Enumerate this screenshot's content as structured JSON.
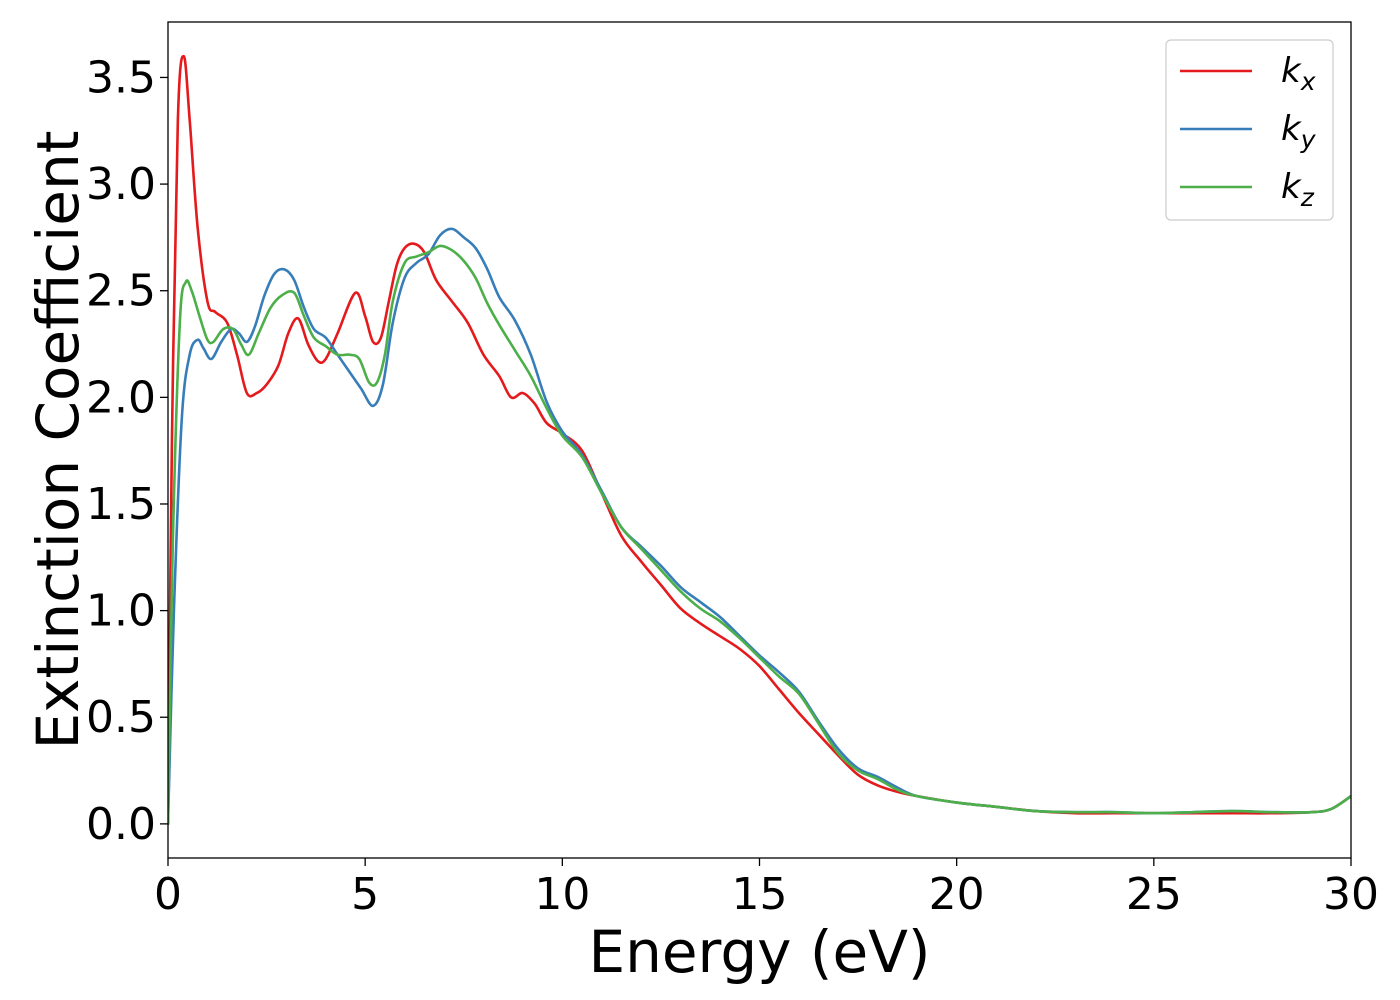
{
  "chart_data": {
    "type": "line",
    "title": "",
    "xlabel": "Energy (eV)",
    "ylabel": "Extinction Coefficient",
    "xlim": [
      0,
      30
    ],
    "ylim": [
      -0.16,
      3.76
    ],
    "xticks": [
      0,
      5,
      10,
      15,
      20,
      25,
      30
    ],
    "xtick_labels": [
      "0",
      "5",
      "10",
      "15",
      "20",
      "25",
      "30"
    ],
    "yticks": [
      0.0,
      0.5,
      1.0,
      1.5,
      2.0,
      2.5,
      3.0,
      3.5
    ],
    "ytick_labels": [
      "0.0",
      "0.5",
      "1.0",
      "1.5",
      "2.0",
      "2.5",
      "3.0",
      "3.5"
    ],
    "grid": false,
    "legend_position": "top-right",
    "series": [
      {
        "name": "k_x",
        "label_main": "k",
        "label_sub": "x",
        "color": "#e41a1c",
        "x": [
          0,
          0.1,
          0.25,
          0.4,
          0.55,
          0.75,
          1.0,
          1.2,
          1.5,
          1.75,
          2.0,
          2.25,
          2.5,
          2.8,
          3.05,
          3.3,
          3.55,
          3.8,
          4.0,
          4.3,
          4.75,
          5.0,
          5.2,
          5.4,
          5.6,
          5.8,
          6.0,
          6.25,
          6.5,
          6.8,
          7.2,
          7.6,
          8.0,
          8.4,
          8.7,
          9.0,
          9.3,
          9.6,
          10.0,
          10.5,
          11.0,
          11.5,
          12.0,
          12.5,
          13.0,
          13.5,
          14.0,
          14.5,
          15.0,
          15.5,
          16.0,
          16.5,
          17.0,
          17.5,
          18.0,
          18.5,
          19.0,
          20.0,
          21.0,
          22.0,
          23.0,
          24.0,
          25.0,
          26.0,
          27.0,
          28.0,
          29.0,
          29.5,
          30.0
        ],
        "y": [
          0.0,
          1.8,
          3.3,
          3.6,
          3.3,
          2.8,
          2.45,
          2.4,
          2.35,
          2.2,
          2.02,
          2.02,
          2.06,
          2.15,
          2.3,
          2.37,
          2.25,
          2.17,
          2.18,
          2.3,
          2.49,
          2.38,
          2.26,
          2.28,
          2.45,
          2.62,
          2.7,
          2.72,
          2.68,
          2.55,
          2.45,
          2.35,
          2.2,
          2.1,
          2.0,
          2.02,
          1.97,
          1.88,
          1.83,
          1.75,
          1.55,
          1.35,
          1.23,
          1.12,
          1.01,
          0.94,
          0.88,
          0.82,
          0.74,
          0.63,
          0.52,
          0.42,
          0.32,
          0.23,
          0.18,
          0.15,
          0.13,
          0.1,
          0.08,
          0.06,
          0.05,
          0.05,
          0.05,
          0.05,
          0.05,
          0.05,
          0.055,
          0.07,
          0.13
        ]
      },
      {
        "name": "k_y",
        "label_main": "k",
        "label_sub": "y",
        "color": "#377eb8",
        "x": [
          0,
          0.15,
          0.35,
          0.55,
          0.75,
          0.9,
          1.1,
          1.35,
          1.6,
          1.8,
          2.0,
          2.2,
          2.45,
          2.7,
          2.95,
          3.2,
          3.45,
          3.7,
          4.0,
          4.3,
          4.6,
          4.9,
          5.2,
          5.45,
          5.7,
          6.0,
          6.3,
          6.6,
          6.9,
          7.2,
          7.5,
          7.8,
          8.1,
          8.4,
          8.8,
          9.2,
          9.6,
          10.0,
          10.5,
          11.0,
          11.5,
          12.0,
          12.5,
          13.0,
          13.5,
          14.0,
          14.5,
          15.0,
          15.5,
          16.0,
          16.5,
          17.0,
          17.5,
          18.0,
          18.5,
          19.0,
          20.0,
          21.0,
          22.0,
          23.0,
          24.0,
          25.0,
          26.0,
          27.0,
          28.0,
          29.0,
          29.5,
          30.0
        ],
        "y": [
          0.0,
          1.0,
          1.9,
          2.2,
          2.27,
          2.23,
          2.18,
          2.26,
          2.32,
          2.3,
          2.26,
          2.33,
          2.48,
          2.58,
          2.6,
          2.55,
          2.42,
          2.32,
          2.28,
          2.2,
          2.12,
          2.04,
          1.96,
          2.06,
          2.35,
          2.56,
          2.63,
          2.67,
          2.76,
          2.79,
          2.75,
          2.7,
          2.6,
          2.47,
          2.36,
          2.2,
          1.98,
          1.84,
          1.73,
          1.56,
          1.39,
          1.3,
          1.21,
          1.11,
          1.04,
          0.97,
          0.88,
          0.79,
          0.71,
          0.62,
          0.48,
          0.35,
          0.26,
          0.22,
          0.17,
          0.13,
          0.1,
          0.08,
          0.06,
          0.055,
          0.055,
          0.05,
          0.055,
          0.06,
          0.055,
          0.055,
          0.07,
          0.13
        ]
      },
      {
        "name": "k_z",
        "label_main": "k",
        "label_sub": "z",
        "color": "#4daf4a",
        "x": [
          0,
          0.12,
          0.3,
          0.45,
          0.6,
          0.8,
          1.0,
          1.15,
          1.4,
          1.65,
          1.85,
          2.05,
          2.3,
          2.6,
          2.9,
          3.2,
          3.45,
          3.7,
          4.0,
          4.3,
          4.6,
          4.85,
          5.1,
          5.3,
          5.5,
          5.7,
          6.0,
          6.3,
          6.6,
          6.9,
          7.2,
          7.5,
          7.8,
          8.1,
          8.4,
          8.8,
          9.2,
          9.6,
          10.0,
          10.5,
          11.0,
          11.5,
          12.0,
          12.5,
          13.0,
          13.5,
          14.0,
          14.5,
          15.0,
          15.5,
          16.0,
          16.5,
          17.0,
          17.5,
          18.0,
          18.5,
          19.0,
          20.0,
          21.0,
          22.0,
          23.0,
          24.0,
          25.0,
          26.0,
          27.0,
          28.0,
          29.0,
          29.5,
          30.0
        ],
        "y": [
          0.0,
          1.3,
          2.35,
          2.54,
          2.5,
          2.38,
          2.27,
          2.26,
          2.32,
          2.32,
          2.25,
          2.2,
          2.3,
          2.42,
          2.48,
          2.49,
          2.38,
          2.28,
          2.24,
          2.2,
          2.2,
          2.18,
          2.07,
          2.07,
          2.2,
          2.45,
          2.63,
          2.66,
          2.68,
          2.71,
          2.69,
          2.64,
          2.56,
          2.44,
          2.34,
          2.22,
          2.1,
          1.95,
          1.82,
          1.72,
          1.55,
          1.39,
          1.29,
          1.19,
          1.09,
          1.01,
          0.95,
          0.87,
          0.78,
          0.69,
          0.61,
          0.47,
          0.33,
          0.25,
          0.21,
          0.16,
          0.13,
          0.1,
          0.08,
          0.06,
          0.055,
          0.055,
          0.05,
          0.055,
          0.06,
          0.055,
          0.055,
          0.07,
          0.13
        ]
      }
    ]
  }
}
